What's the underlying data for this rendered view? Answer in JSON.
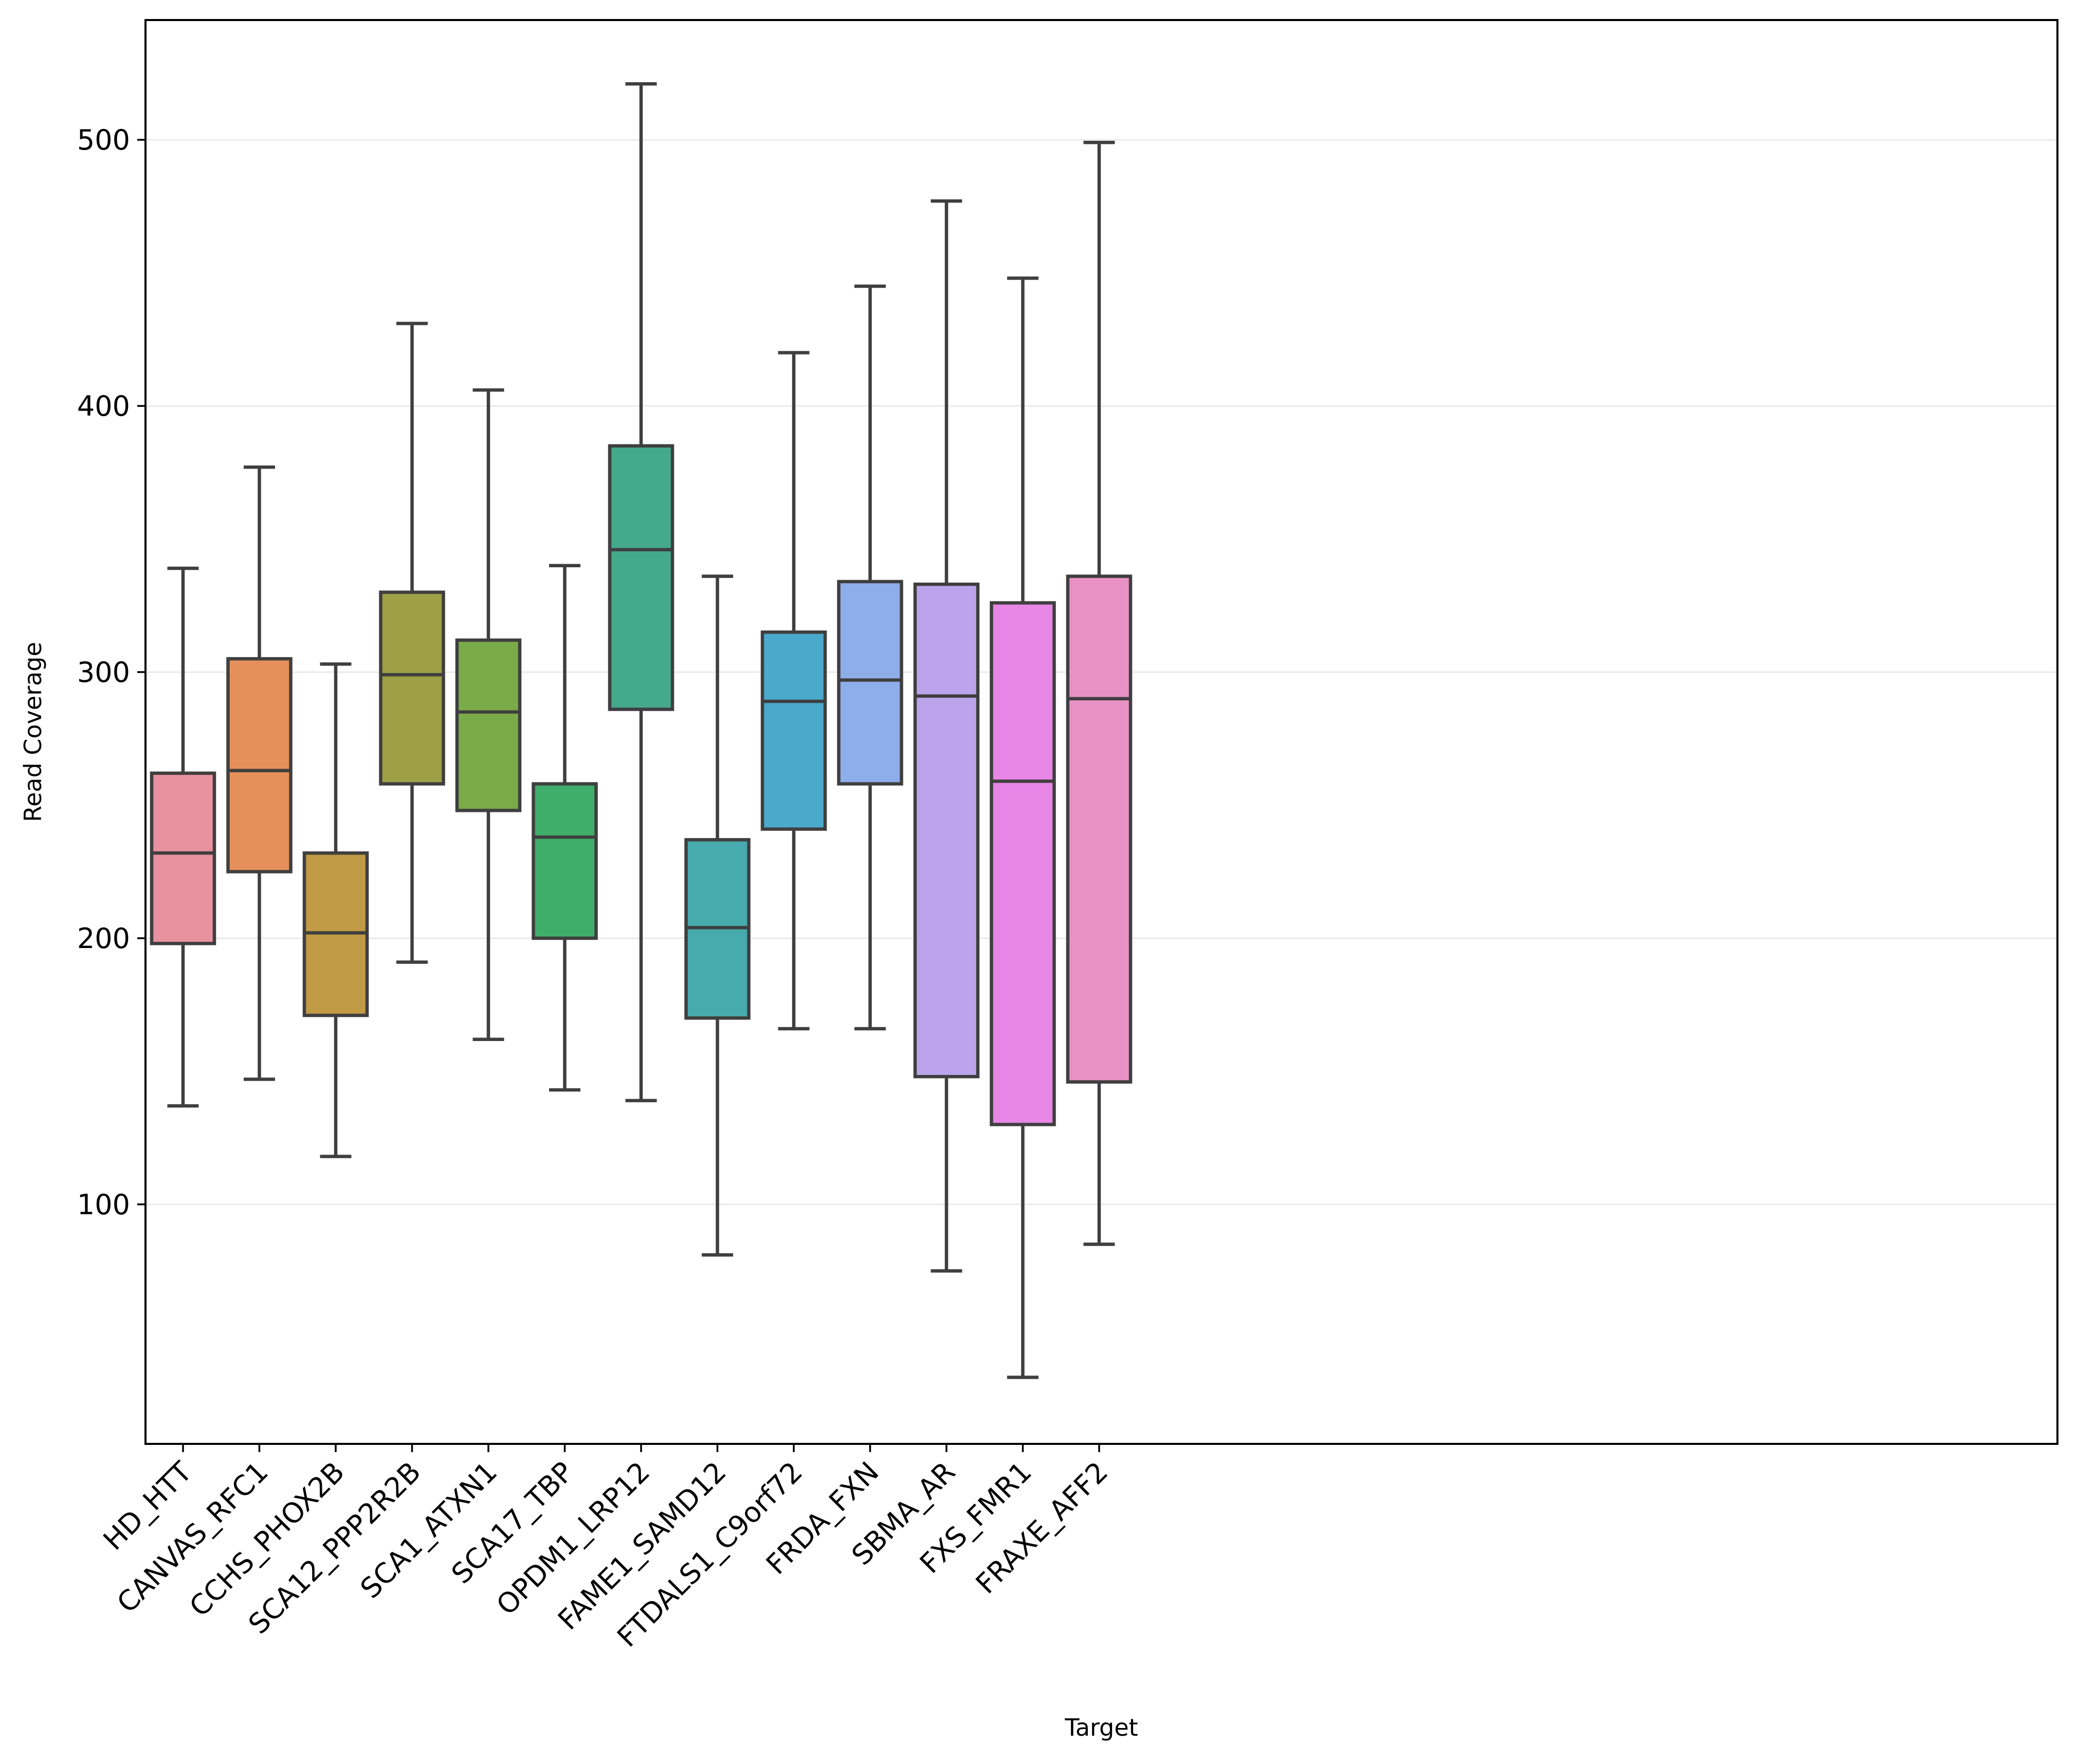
{
  "chart_data": {
    "type": "boxplot",
    "xlabel": "Target",
    "ylabel": "Read Coverage",
    "ylim": [
      10,
      545
    ],
    "yticks": [
      100,
      200,
      300,
      400,
      500
    ],
    "grid": "horizontal",
    "categories": [
      "HD_HTT",
      "CANVAS_RFC1",
      "CCHS_PHOX2B",
      "SCA12_PPP2R2B",
      "SCA1_ATXN1",
      "SCA17_TBP",
      "OPDM1_LRP12",
      "FAME1_SAMD12",
      "FTDALS1_C9orf72",
      "FRDA_FXN",
      "SBMA_AR",
      "FXS_FMR1",
      "FRAXE_AFF2"
    ],
    "boxes": [
      {
        "whislo": 137,
        "q1": 198,
        "med": 232,
        "q3": 262,
        "whishi": 339,
        "color": "#e8919f"
      },
      {
        "whislo": 147,
        "q1": 225,
        "med": 263,
        "q3": 305,
        "whishi": 377,
        "color": "#e5905a"
      },
      {
        "whislo": 118,
        "q1": 171,
        "med": 202,
        "q3": 232,
        "whishi": 303,
        "color": "#c09a45"
      },
      {
        "whislo": 191,
        "q1": 258,
        "med": 299,
        "q3": 330,
        "whishi": 431,
        "color": "#9da045"
      },
      {
        "whislo": 162,
        "q1": 248,
        "med": 285,
        "q3": 312,
        "whishi": 406,
        "color": "#7aab48"
      },
      {
        "whislo": 143,
        "q1": 200,
        "med": 238,
        "q3": 258,
        "whishi": 340,
        "color": "#3fae6a"
      },
      {
        "whislo": 139,
        "q1": 286,
        "med": 346,
        "q3": 385,
        "whishi": 521,
        "color": "#44a98a"
      },
      {
        "whislo": 81,
        "q1": 170,
        "med": 204,
        "q3": 237,
        "whishi": 336,
        "color": "#47aaac"
      },
      {
        "whislo": 166,
        "q1": 241,
        "med": 289,
        "q3": 315,
        "whishi": 420,
        "color": "#4aaacb"
      },
      {
        "whislo": 166,
        "q1": 258,
        "med": 297,
        "q3": 334,
        "whishi": 445,
        "color": "#8eaee9"
      },
      {
        "whislo": 75,
        "q1": 148,
        "med": 291,
        "q3": 333,
        "whishi": 477,
        "color": "#bca4ec"
      },
      {
        "whislo": 35,
        "q1": 130,
        "med": 259,
        "q3": 326,
        "whishi": 448,
        "color": "#e886e6"
      },
      {
        "whislo": 85,
        "q1": 146,
        "med": 290,
        "q3": 336,
        "whishi": 499,
        "color": "#e891c4"
      }
    ],
    "line_color": "#3f3f3f",
    "grid_color": "#e6e6e6"
  }
}
